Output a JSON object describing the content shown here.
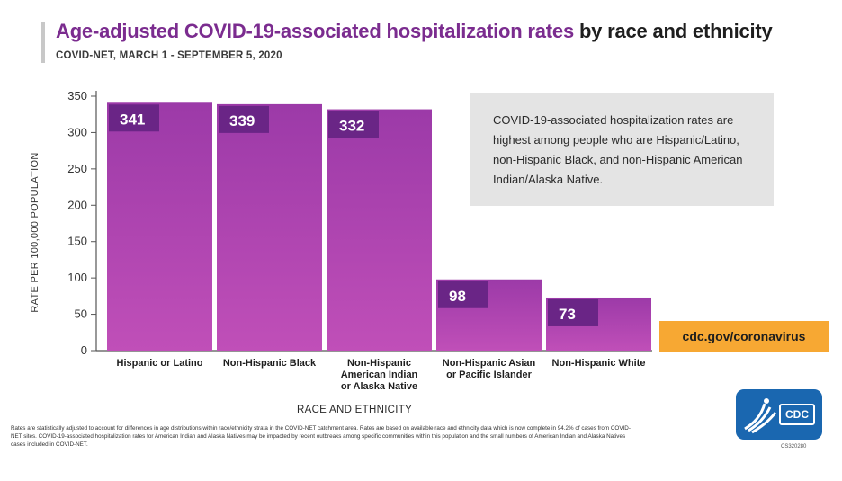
{
  "header": {
    "title_highlight": "Age-adjusted COVID-19-associated hospitalization rates",
    "title_rest": "by race and ethnicity",
    "subtitle": "COVID-NET, MARCH 1 - SEPTEMBER 5, 2020"
  },
  "callout": {
    "text": "COVID-19-associated hospitalization rates are highest among people who are Hispanic/Latino, non-Hispanic Black, and non-Hispanic American Indian/Alaska Native."
  },
  "site_badge": "cdc.gov/coronavirus",
  "footnote": "Rates are statistically adjusted to account for differences in age distributions within race/ethnicity strata in the COVID-NET catchment area. Rates are based on available race and ethnicity data which is now complete in 94.2% of cases from COVID-NET sites. COVID-19-associated hospitalization rates for American Indian and Alaska Natives may be impacted by recent outbreaks among specific communities within this population and the small numbers of American Indian and Alaska Natives cases included in COVID-NET.",
  "logo": {
    "text": "CDC",
    "code": "CS320280"
  },
  "colors": {
    "bar": "#9c3aa8",
    "bar_label_box": "#6a2586",
    "accent": "#7b2c8f",
    "badge": "#f7a833"
  },
  "chart_data": {
    "type": "bar",
    "title": "Age-adjusted COVID-19-associated hospitalization rates by race and ethnicity",
    "subtitle": "COVID-NET, MARCH 1 - SEPTEMBER 5, 2020",
    "xlabel": "RACE AND ETHNICITY",
    "ylabel": "RATE PER 100,000 POPULATION",
    "categories": [
      [
        "Hispanic or Latino"
      ],
      [
        "Non-Hispanic Black"
      ],
      [
        "Non-Hispanic",
        "American Indian",
        "or Alaska Native"
      ],
      [
        "Non-Hispanic Asian",
        "or Pacific Islander"
      ],
      [
        "Non-Hispanic White"
      ]
    ],
    "values": [
      341,
      339,
      332,
      98,
      73
    ],
    "data_labels": [
      "341",
      "339",
      "332",
      "98",
      "73"
    ],
    "ylim": [
      0,
      350
    ],
    "yticks": [
      0,
      50,
      100,
      150,
      200,
      250,
      300,
      350
    ],
    "ytick_labels": [
      "0",
      "50",
      "100",
      "150",
      "200",
      "250",
      "300",
      "350"
    ],
    "grid": false,
    "legend": "none"
  }
}
